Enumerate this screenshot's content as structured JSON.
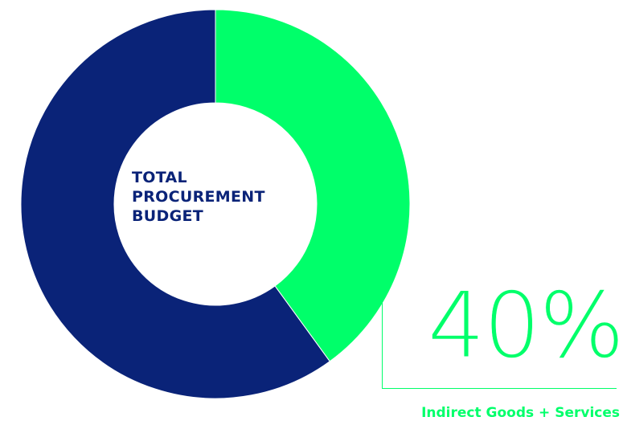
{
  "chart_data": {
    "type": "pie",
    "style": "donut",
    "center_label": [
      "TOTAL",
      "PROCUREMENT",
      "BUDGET"
    ],
    "slices": [
      {
        "label": "Indirect Goods + Services",
        "value": 40,
        "color": "#00ff6a",
        "value_label": "40%"
      },
      {
        "value": 60,
        "color": "#0a2378"
      }
    ]
  }
}
